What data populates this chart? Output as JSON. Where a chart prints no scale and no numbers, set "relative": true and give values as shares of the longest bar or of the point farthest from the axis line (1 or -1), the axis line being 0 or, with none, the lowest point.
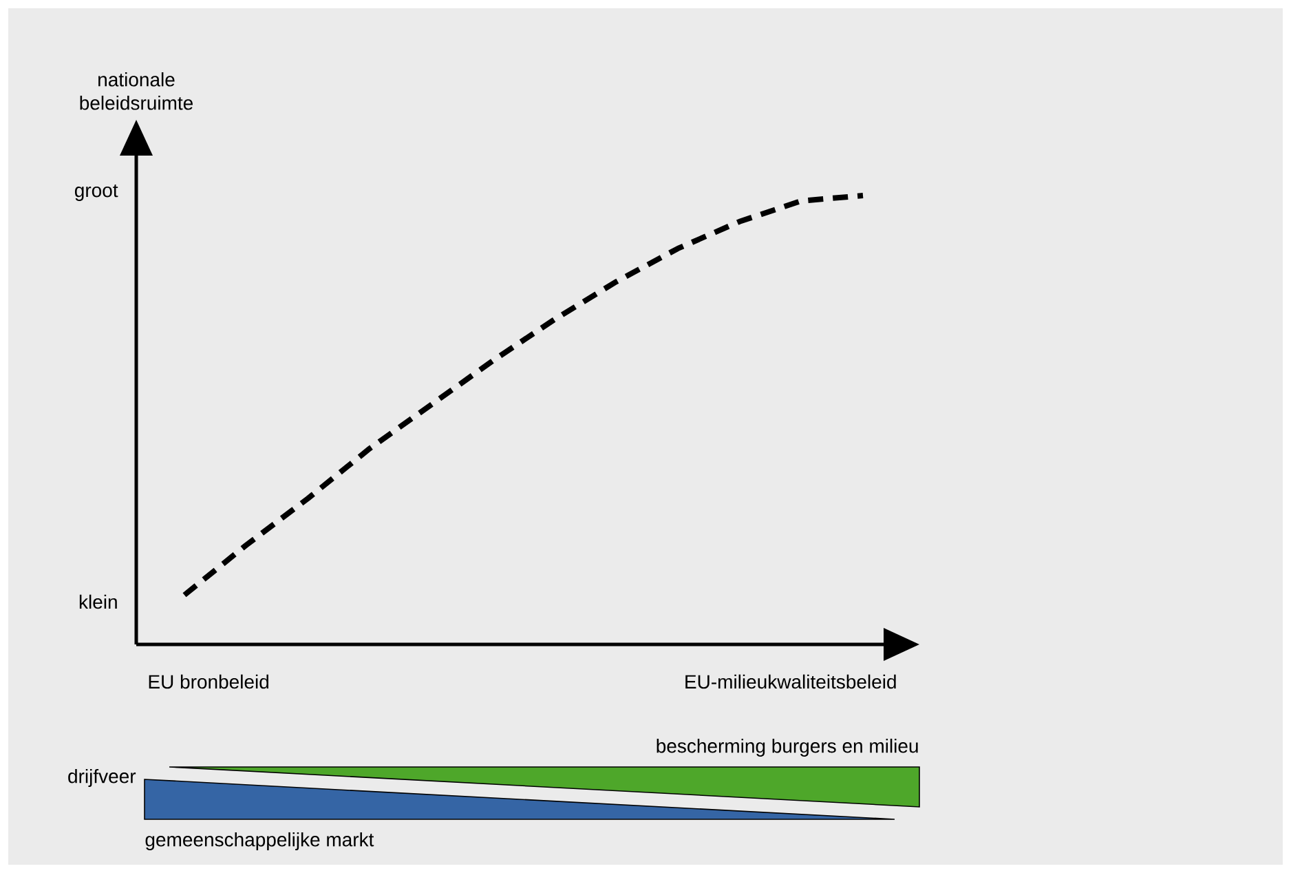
{
  "chart_data": [
    {
      "type": "line",
      "relative": true,
      "ylabel": "nationale beleidsruimte",
      "categories": [
        null,
        null,
        null,
        null,
        null,
        null,
        null,
        null,
        null,
        null,
        null,
        null
      ],
      "values": [
        0.11,
        0.221,
        0.325,
        0.436,
        0.534,
        0.632,
        0.724,
        0.808,
        0.882,
        0.942,
        0.988,
        1
      ],
      "color": "#000000",
      "line_style": "dashed",
      "annotations": [
        "groot",
        "klein",
        "EU bronbeleid",
        "EU-milieukwaliteitsbeleid"
      ]
    },
    {
      "type": "other",
      "annotations": [
        "drijfveer",
        "bescherming burgers en milieu",
        "gemeenschappelijke markt"
      ]
    }
  ]
}
